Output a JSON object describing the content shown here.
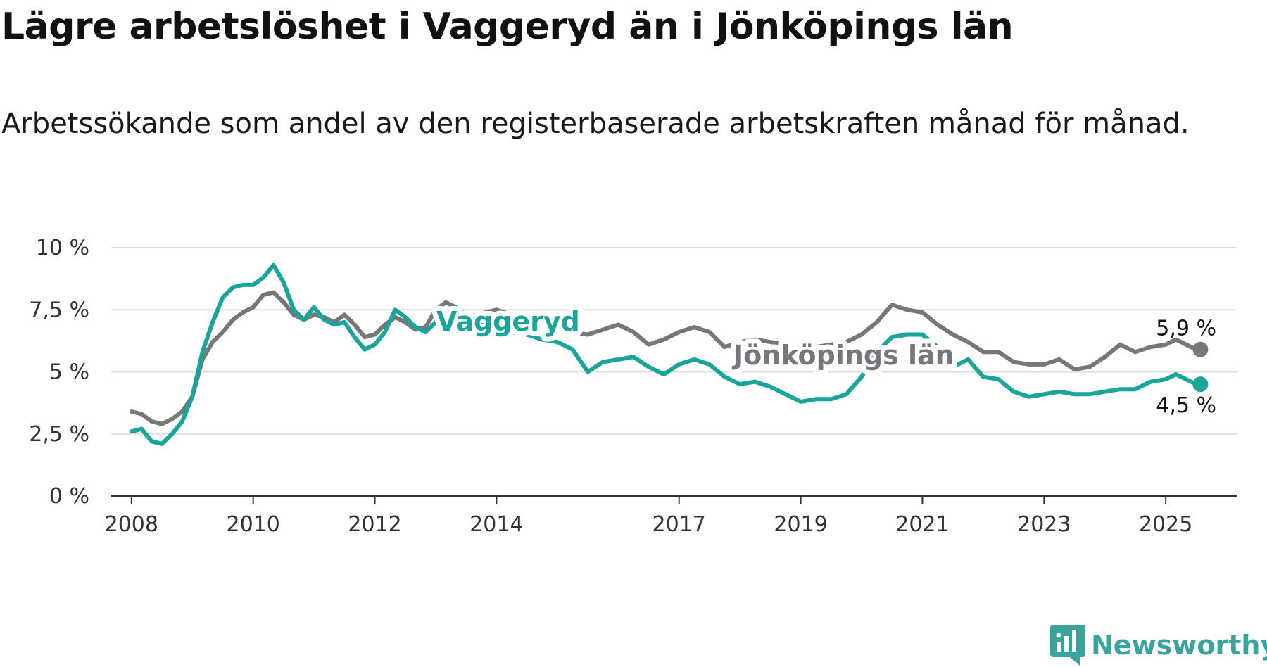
{
  "title": "Lägre arbetslöshet i Vaggeryd än i Jönköpings län",
  "subtitle": "Arbetssökande som andel av den registerbaserade arbetskraften månad för månad.",
  "brand": "Newsworthy",
  "colors": {
    "vaggeryd": "#1aa59a",
    "lan": "#77767b",
    "grid": "#dedede",
    "axis": "#333333",
    "brand": "#3aa39a"
  },
  "chart_data": {
    "type": "line",
    "title": "Lägre arbetslöshet i Vaggeryd än i Jönköpings län",
    "subtitle": "Arbetssökande som andel av den registerbaserade arbetskraften månad för månad.",
    "xlabel": "",
    "ylabel": "",
    "ylim": [
      0,
      10
    ],
    "xlim": [
      "2007-09",
      "2026-03"
    ],
    "yticks": [
      0,
      2.5,
      5,
      7.5,
      10
    ],
    "ytick_labels": [
      "0 %",
      "2,5 %",
      "5 %",
      "7,5 %",
      "10 %"
    ],
    "xticks": [
      "2008",
      "2010",
      "2012",
      "2014",
      "2017",
      "2019",
      "2021",
      "2023",
      "2025"
    ],
    "grid": true,
    "legend": "direct labels on lines",
    "series": [
      {
        "name": "Vaggeryd",
        "color": "#1aa59a",
        "end_label": "4,5 %",
        "points": [
          [
            "2008-01",
            2.6
          ],
          [
            "2008-03",
            2.7
          ],
          [
            "2008-05",
            2.2
          ],
          [
            "2008-07",
            2.1
          ],
          [
            "2008-09",
            2.5
          ],
          [
            "2008-11",
            3.0
          ],
          [
            "2009-01",
            4.0
          ],
          [
            "2009-03",
            5.8
          ],
          [
            "2009-05",
            7.0
          ],
          [
            "2009-07",
            8.0
          ],
          [
            "2009-09",
            8.4
          ],
          [
            "2009-11",
            8.5
          ],
          [
            "2010-01",
            8.5
          ],
          [
            "2010-03",
            8.8
          ],
          [
            "2010-05",
            9.3
          ],
          [
            "2010-07",
            8.6
          ],
          [
            "2010-09",
            7.5
          ],
          [
            "2010-11",
            7.1
          ],
          [
            "2011-01",
            7.6
          ],
          [
            "2011-03",
            7.1
          ],
          [
            "2011-05",
            6.9
          ],
          [
            "2011-07",
            7.0
          ],
          [
            "2011-09",
            6.4
          ],
          [
            "2011-11",
            5.9
          ],
          [
            "2012-01",
            6.1
          ],
          [
            "2012-03",
            6.6
          ],
          [
            "2012-05",
            7.5
          ],
          [
            "2012-07",
            7.2
          ],
          [
            "2012-09",
            6.8
          ],
          [
            "2012-11",
            6.6
          ],
          [
            "2013-01",
            7.0
          ],
          [
            "2013-03",
            7.3
          ],
          [
            "2013-05",
            7.6
          ],
          [
            "2013-07",
            7.3
          ],
          [
            "2013-09",
            7.0
          ],
          [
            "2013-11",
            6.8
          ],
          [
            "2014-01",
            6.7
          ],
          [
            "2014-04",
            6.6
          ],
          [
            "2014-07",
            6.5
          ],
          [
            "2014-10",
            6.3
          ],
          [
            "2015-01",
            6.2
          ],
          [
            "2015-04",
            5.9
          ],
          [
            "2015-07",
            5.0
          ],
          [
            "2015-10",
            5.4
          ],
          [
            "2016-01",
            5.5
          ],
          [
            "2016-04",
            5.6
          ],
          [
            "2016-07",
            5.2
          ],
          [
            "2016-10",
            4.9
          ],
          [
            "2017-01",
            5.3
          ],
          [
            "2017-04",
            5.5
          ],
          [
            "2017-07",
            5.3
          ],
          [
            "2017-10",
            4.8
          ],
          [
            "2018-01",
            4.5
          ],
          [
            "2018-04",
            4.6
          ],
          [
            "2018-07",
            4.4
          ],
          [
            "2018-10",
            4.1
          ],
          [
            "2019-01",
            3.8
          ],
          [
            "2019-04",
            3.9
          ],
          [
            "2019-07",
            3.9
          ],
          [
            "2019-10",
            4.1
          ],
          [
            "2020-01",
            4.8
          ],
          [
            "2020-04",
            5.8
          ],
          [
            "2020-07",
            6.4
          ],
          [
            "2020-10",
            6.5
          ],
          [
            "2021-01",
            6.5
          ],
          [
            "2021-04",
            6.0
          ],
          [
            "2021-07",
            5.2
          ],
          [
            "2021-10",
            5.5
          ],
          [
            "2022-01",
            4.8
          ],
          [
            "2022-04",
            4.7
          ],
          [
            "2022-07",
            4.2
          ],
          [
            "2022-10",
            4.0
          ],
          [
            "2023-01",
            4.1
          ],
          [
            "2023-04",
            4.2
          ],
          [
            "2023-07",
            4.1
          ],
          [
            "2023-10",
            4.1
          ],
          [
            "2024-01",
            4.2
          ],
          [
            "2024-04",
            4.3
          ],
          [
            "2024-07",
            4.3
          ],
          [
            "2024-10",
            4.6
          ],
          [
            "2025-01",
            4.7
          ],
          [
            "2025-03",
            4.9
          ],
          [
            "2025-05",
            4.7
          ],
          [
            "2025-07",
            4.5
          ]
        ]
      },
      {
        "name": "Jönköpings län",
        "color": "#77767b",
        "end_label": "5,9 %",
        "points": [
          [
            "2008-01",
            3.4
          ],
          [
            "2008-03",
            3.3
          ],
          [
            "2008-05",
            3.0
          ],
          [
            "2008-07",
            2.9
          ],
          [
            "2008-09",
            3.1
          ],
          [
            "2008-11",
            3.4
          ],
          [
            "2009-01",
            4.0
          ],
          [
            "2009-03",
            5.5
          ],
          [
            "2009-05",
            6.2
          ],
          [
            "2009-07",
            6.6
          ],
          [
            "2009-09",
            7.1
          ],
          [
            "2009-11",
            7.4
          ],
          [
            "2010-01",
            7.6
          ],
          [
            "2010-03",
            8.1
          ],
          [
            "2010-05",
            8.2
          ],
          [
            "2010-07",
            7.8
          ],
          [
            "2010-09",
            7.3
          ],
          [
            "2010-11",
            7.1
          ],
          [
            "2011-01",
            7.3
          ],
          [
            "2011-03",
            7.2
          ],
          [
            "2011-05",
            7.0
          ],
          [
            "2011-07",
            7.3
          ],
          [
            "2011-09",
            6.9
          ],
          [
            "2011-11",
            6.4
          ],
          [
            "2012-01",
            6.5
          ],
          [
            "2012-03",
            6.9
          ],
          [
            "2012-05",
            7.2
          ],
          [
            "2012-07",
            7.0
          ],
          [
            "2012-09",
            6.7
          ],
          [
            "2012-11",
            6.8
          ],
          [
            "2013-01",
            7.5
          ],
          [
            "2013-03",
            7.8
          ],
          [
            "2013-05",
            7.6
          ],
          [
            "2013-07",
            7.2
          ],
          [
            "2013-09",
            7.3
          ],
          [
            "2013-11",
            7.4
          ],
          [
            "2014-01",
            7.5
          ],
          [
            "2014-04",
            7.3
          ],
          [
            "2014-07",
            7.0
          ],
          [
            "2014-10",
            7.1
          ],
          [
            "2015-01",
            6.9
          ],
          [
            "2015-04",
            6.6
          ],
          [
            "2015-07",
            6.5
          ],
          [
            "2015-10",
            6.7
          ],
          [
            "2016-01",
            6.9
          ],
          [
            "2016-04",
            6.6
          ],
          [
            "2016-07",
            6.1
          ],
          [
            "2016-10",
            6.3
          ],
          [
            "2017-01",
            6.6
          ],
          [
            "2017-04",
            6.8
          ],
          [
            "2017-07",
            6.6
          ],
          [
            "2017-10",
            6.0
          ],
          [
            "2018-01",
            6.2
          ],
          [
            "2018-04",
            6.3
          ],
          [
            "2018-07",
            6.2
          ],
          [
            "2018-10",
            6.1
          ],
          [
            "2019-01",
            5.9
          ],
          [
            "2019-04",
            6.0
          ],
          [
            "2019-07",
            6.1
          ],
          [
            "2019-10",
            6.2
          ],
          [
            "2020-01",
            6.5
          ],
          [
            "2020-04",
            7.0
          ],
          [
            "2020-07",
            7.7
          ],
          [
            "2020-10",
            7.5
          ],
          [
            "2021-01",
            7.4
          ],
          [
            "2021-04",
            6.9
          ],
          [
            "2021-07",
            6.5
          ],
          [
            "2021-10",
            6.2
          ],
          [
            "2022-01",
            5.8
          ],
          [
            "2022-04",
            5.8
          ],
          [
            "2022-07",
            5.4
          ],
          [
            "2022-10",
            5.3
          ],
          [
            "2023-01",
            5.3
          ],
          [
            "2023-04",
            5.5
          ],
          [
            "2023-07",
            5.1
          ],
          [
            "2023-10",
            5.2
          ],
          [
            "2024-01",
            5.6
          ],
          [
            "2024-04",
            6.1
          ],
          [
            "2024-07",
            5.8
          ],
          [
            "2024-10",
            6.0
          ],
          [
            "2025-01",
            6.1
          ],
          [
            "2025-03",
            6.3
          ],
          [
            "2025-05",
            6.1
          ],
          [
            "2025-07",
            5.9
          ]
        ]
      }
    ]
  }
}
